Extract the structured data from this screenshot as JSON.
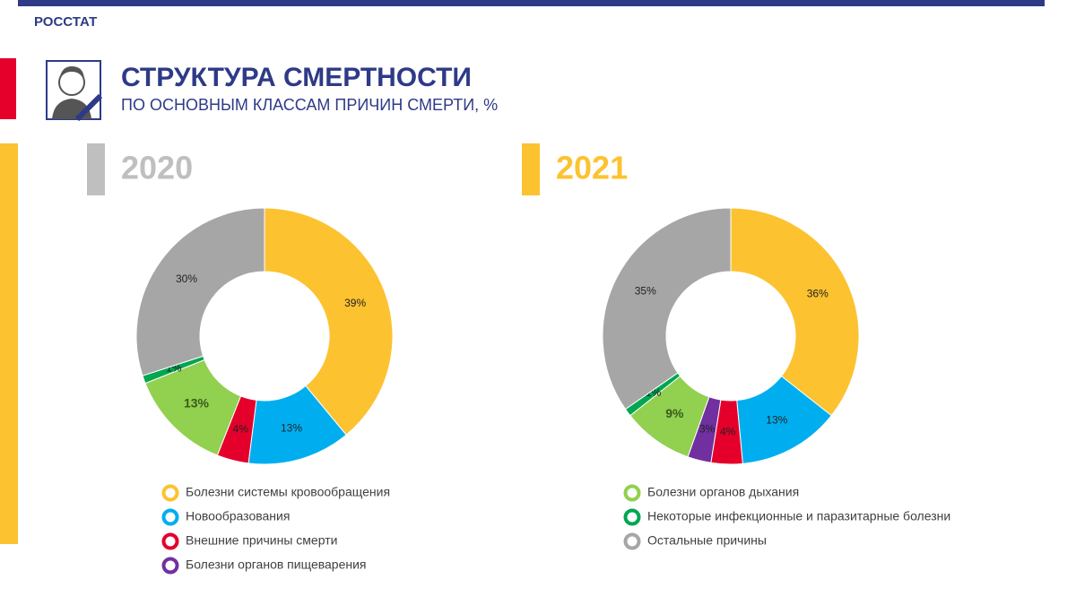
{
  "header": {
    "brand": "РОССТАТ",
    "title": "СТРУКТУРА СМЕРТНОСТИ",
    "subtitle": "ПО ОСНОВНЫМ КЛАССАМ ПРИЧИН СМЕРТИ, %"
  },
  "chart_data": {
    "type": "donut",
    "categories": [
      "Болезни системы кровообращения",
      "Новообразования",
      "Внешние причины смерти",
      "Болезни органов пищеварения",
      "Болезни органов дыхания",
      "Некоторые инфекционные и паразитарные болезни",
      "Остальные причины"
    ],
    "colors": [
      "#fcc230",
      "#00aeef",
      "#e4002b",
      "#7030a0",
      "#92d050",
      "#00a651",
      "#a6a6a6"
    ],
    "series": [
      {
        "name": "2020",
        "color": "#bfbfbf",
        "values": [
          39,
          13,
          4,
          null,
          13,
          1,
          30
        ],
        "value_labels": [
          "39%",
          "13%",
          "4%",
          null,
          "13%",
          "1%",
          "30%"
        ]
      },
      {
        "name": "2021",
        "color": "#fcc230",
        "values": [
          36,
          13,
          4,
          3,
          9,
          1,
          35
        ],
        "value_labels": [
          "36%",
          "13%",
          "4%",
          "3%",
          "9%",
          "1%",
          "35%"
        ]
      }
    ]
  }
}
